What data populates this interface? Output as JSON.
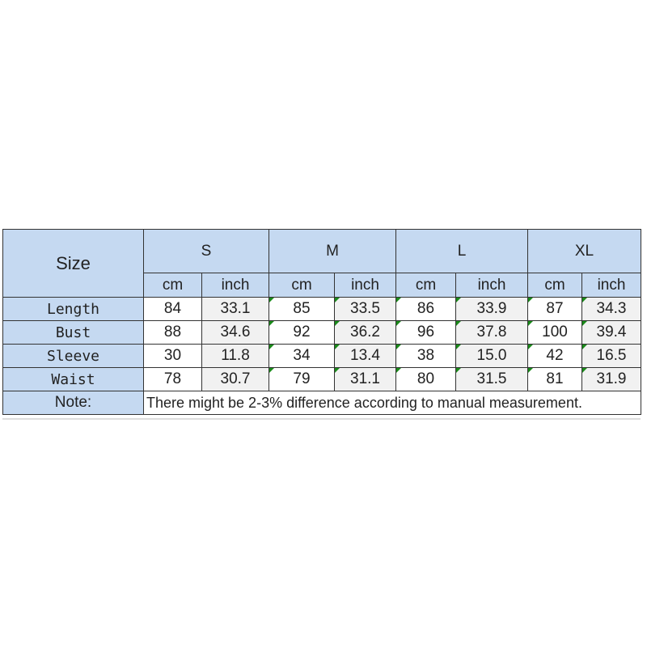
{
  "table": {
    "corner_label": "Size",
    "sizes": [
      "S",
      "M",
      "L",
      "XL"
    ],
    "units": [
      "cm",
      "inch"
    ],
    "rows": [
      {
        "label": "Length",
        "values": [
          "84",
          "33.1",
          "85",
          "33.5",
          "86",
          "33.9",
          "87",
          "34.3"
        ]
      },
      {
        "label": "Bust",
        "values": [
          "88",
          "34.6",
          "92",
          "36.2",
          "96",
          "37.8",
          "100",
          "39.4"
        ]
      },
      {
        "label": "Sleeve",
        "values": [
          "30",
          "11.8",
          "34",
          "13.4",
          "38",
          "15.0",
          "42",
          "16.5"
        ]
      },
      {
        "label": "Waist",
        "values": [
          "78",
          "30.7",
          "79",
          "31.1",
          "80",
          "31.5",
          "81",
          "31.9"
        ]
      }
    ],
    "note_label": "Note:",
    "note_text": "There might be 2-3% difference according to manual measurement."
  },
  "colors": {
    "header_bg": "#c5d9f1",
    "inch_bg": "#f1f1f1",
    "marker": "#1a8a1a"
  }
}
